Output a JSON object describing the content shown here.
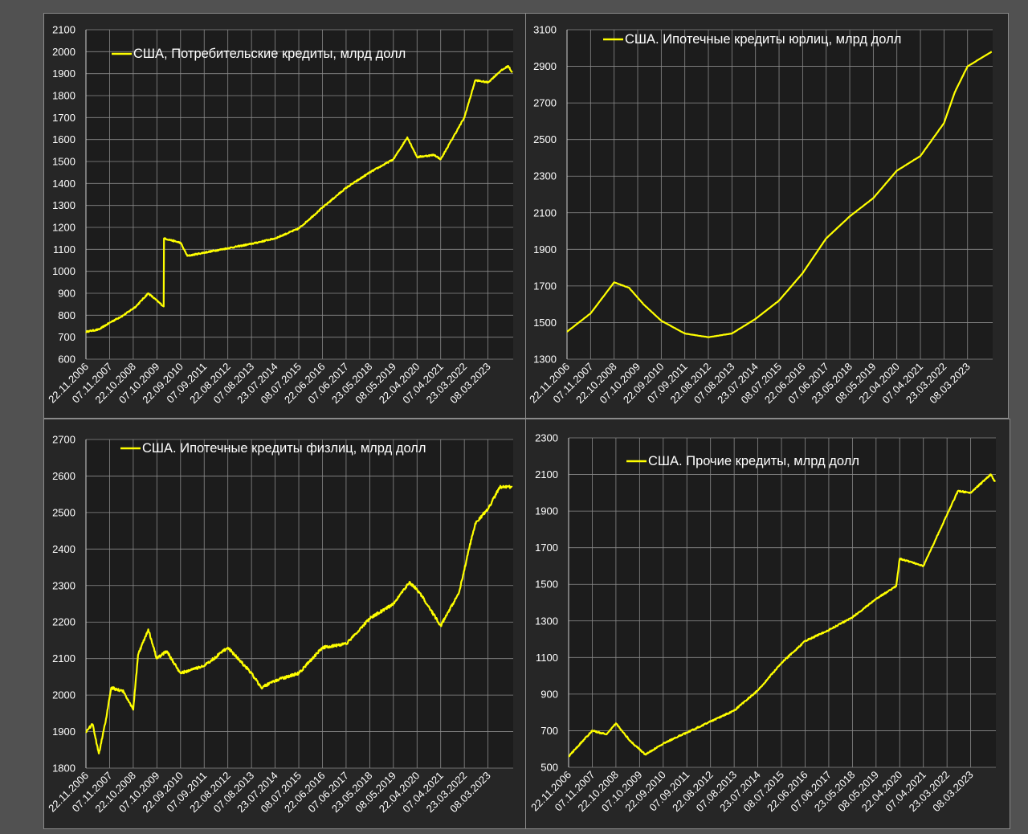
{
  "colors": {
    "line": "#ffff00",
    "plot_bg": "#1c1c1c",
    "grid": "#8a8a8a",
    "text": "#ffffff"
  },
  "x_tick_labels": [
    "22.11.2006",
    "07.11.2007",
    "22.10.2008",
    "07.10.2009",
    "22.09.2010",
    "07.09.2011",
    "22.08.2012",
    "07.08.2013",
    "23.07.2014",
    "08.07.2015",
    "22.06.2016",
    "07.06.2017",
    "23.05.2018",
    "08.05.2019",
    "22.04.2020",
    "07.04.2021",
    "23.03.2022",
    "08.03.2023"
  ],
  "chart_data": [
    {
      "type": "line",
      "title": "",
      "legend_label": "США, Потребительские кредиты, млрд долл",
      "legend_position": "top-left",
      "xlabel": "",
      "ylabel": "",
      "ylim": [
        600,
        2100
      ],
      "yticks": [
        600,
        700,
        800,
        900,
        1000,
        1100,
        1200,
        1300,
        1400,
        1500,
        1600,
        1700,
        1800,
        1900,
        2000,
        2100
      ],
      "grid": true,
      "x": [
        "2006-11-22",
        "2007-06-01",
        "2007-12-01",
        "2008-06-01",
        "2008-12-01",
        "2009-06-01",
        "2010-01-15",
        "2010-01-20",
        "2010-09-22",
        "2011-01-01",
        "2011-09-07",
        "2012-08-22",
        "2013-08-07",
        "2014-07-23",
        "2015-07-08",
        "2016-06-22",
        "2017-06-07",
        "2018-05-23",
        "2019-05-08",
        "2019-12-01",
        "2020-04-22",
        "2021-01-01",
        "2021-04-07",
        "2022-03-23",
        "2022-09-01",
        "2023-03-08",
        "2023-09-01",
        "2024-01-01",
        "2024-03-01"
      ],
      "series": [
        {
          "values": [
            725,
            735,
            770,
            800,
            840,
            900,
            840,
            1150,
            1130,
            1070,
            1085,
            1105,
            1125,
            1150,
            1195,
            1290,
            1380,
            1450,
            1510,
            1610,
            1520,
            1530,
            1510,
            1700,
            1870,
            1860,
            1910,
            1935,
            1905
          ]
        }
      ]
    },
    {
      "type": "line",
      "title": "",
      "legend_label": "США. Ипотечные кредиты юрлиц, млрд долл",
      "legend_position": "top-center",
      "xlabel": "",
      "ylabel": "",
      "ylim": [
        1300,
        3100
      ],
      "yticks": [
        1300,
        1500,
        1700,
        1900,
        2100,
        2300,
        2500,
        2700,
        2900,
        3100
      ],
      "grid": true,
      "x": [
        "2006-11-22",
        "2007-11-07",
        "2008-06-01",
        "2008-10-22",
        "2009-06-01",
        "2010-01-01",
        "2010-09-22",
        "2011-09-07",
        "2012-08-22",
        "2013-08-07",
        "2014-07-23",
        "2015-07-08",
        "2016-06-22",
        "2017-06-07",
        "2018-05-23",
        "2019-05-08",
        "2020-04-22",
        "2021-04-07",
        "2022-03-23",
        "2022-09-01",
        "2023-03-08",
        "2024-03-01"
      ],
      "series": [
        {
          "values": [
            1450,
            1550,
            1650,
            1720,
            1690,
            1600,
            1510,
            1440,
            1420,
            1440,
            1520,
            1620,
            1770,
            1960,
            2080,
            2180,
            2330,
            2410,
            2590,
            2760,
            2900,
            2980
          ]
        }
      ]
    },
    {
      "type": "line",
      "title": "",
      "legend_label": "США. Ипотечные кредиты физлиц, млрд долл",
      "legend_position": "top-left",
      "xlabel": "",
      "ylabel": "",
      "ylim": [
        1800,
        2700
      ],
      "yticks": [
        1800,
        1900,
        2000,
        2100,
        2200,
        2300,
        2400,
        2500,
        2600,
        2700
      ],
      "grid": true,
      "x": [
        "2006-11-22",
        "2007-03-01",
        "2007-06-01",
        "2007-09-01",
        "2007-12-01",
        "2008-06-01",
        "2008-10-22",
        "2009-01-01",
        "2009-06-01",
        "2009-10-07",
        "2010-03-01",
        "2010-09-22",
        "2011-09-07",
        "2012-08-22",
        "2013-08-07",
        "2014-01-01",
        "2014-07-23",
        "2015-07-08",
        "2016-06-22",
        "2017-06-07",
        "2018-05-23",
        "2019-05-08",
        "2020-01-01",
        "2020-06-01",
        "2021-04-07",
        "2022-01-01",
        "2022-06-01",
        "2022-09-01",
        "2023-03-08",
        "2023-09-01",
        "2024-03-01"
      ],
      "series": [
        {
          "values": [
            1900,
            1920,
            1840,
            1920,
            2020,
            2010,
            1960,
            2110,
            2180,
            2100,
            2120,
            2060,
            2080,
            2130,
            2060,
            2020,
            2040,
            2060,
            2130,
            2140,
            2210,
            2250,
            2310,
            2280,
            2190,
            2280,
            2400,
            2470,
            2510,
            2570,
            2570
          ]
        }
      ]
    },
    {
      "type": "line",
      "title": "",
      "legend_label": "США. Прочие кредиты, млрд долл",
      "legend_position": "top-center",
      "xlabel": "",
      "ylabel": "",
      "ylim": [
        500,
        2300
      ],
      "yticks": [
        500,
        700,
        900,
        1100,
        1300,
        1500,
        1700,
        1900,
        2100,
        2300
      ],
      "grid": true,
      "x": [
        "2006-11-22",
        "2007-11-07",
        "2008-06-01",
        "2008-10-22",
        "2009-06-01",
        "2010-01-01",
        "2010-09-22",
        "2011-09-07",
        "2012-08-22",
        "2013-08-07",
        "2014-07-23",
        "2015-07-08",
        "2016-06-22",
        "2017-06-07",
        "2018-05-23",
        "2019-05-08",
        "2020-03-01",
        "2020-04-22",
        "2021-04-07",
        "2022-03-23",
        "2022-09-01",
        "2023-03-08",
        "2024-01-01",
        "2024-03-01"
      ],
      "series": [
        {
          "values": [
            560,
            700,
            680,
            740,
            640,
            570,
            630,
            690,
            750,
            810,
            920,
            1070,
            1190,
            1250,
            1320,
            1420,
            1490,
            1640,
            1600,
            1880,
            2010,
            2000,
            2100,
            2060
          ]
        }
      ]
    }
  ]
}
